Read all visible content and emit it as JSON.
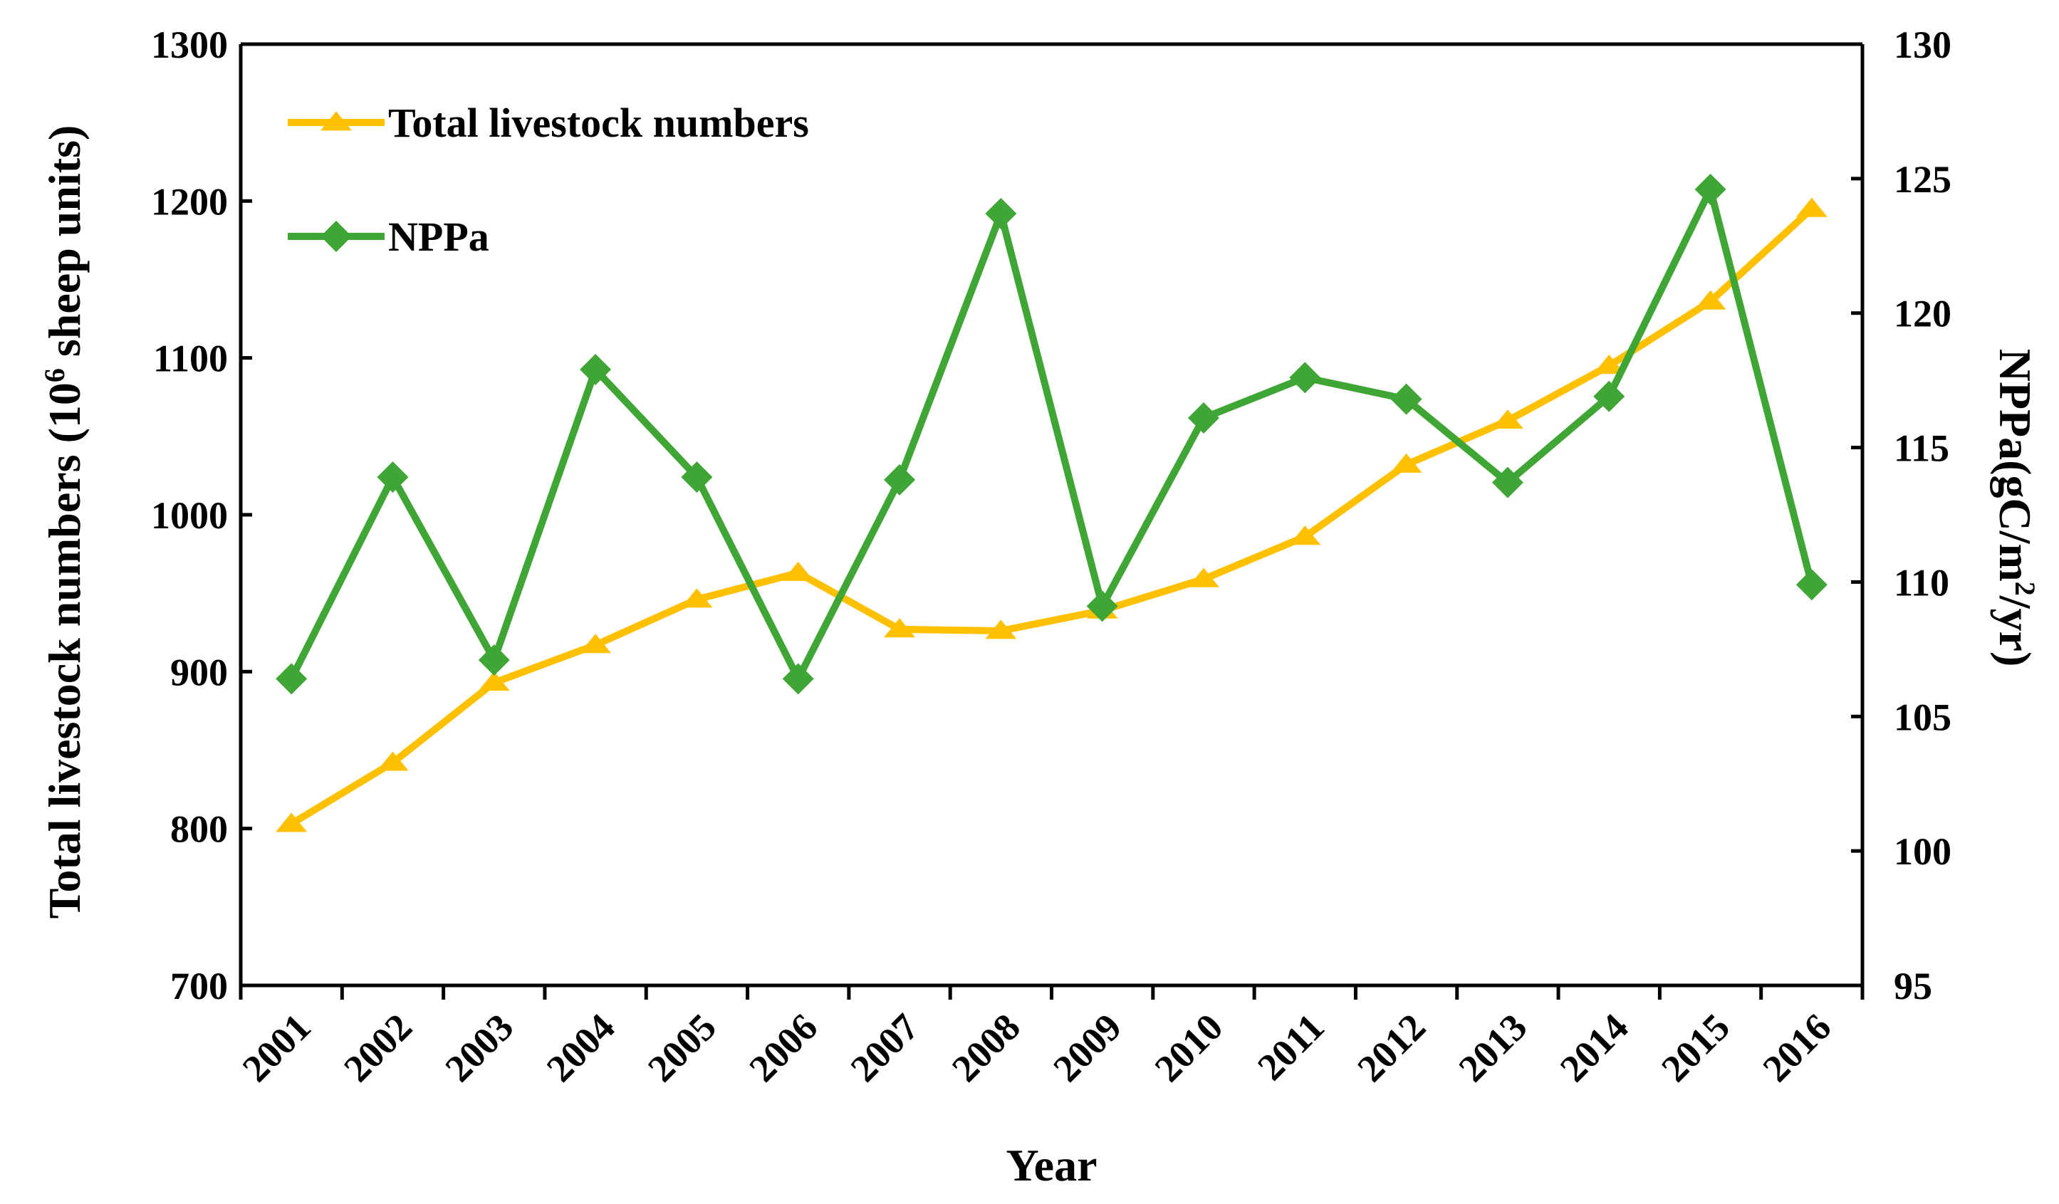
{
  "chart_data": {
    "type": "line",
    "title": "",
    "xlabel": "Year",
    "ylabel_left": {
      "pre": "Total livestock numbers (10",
      "sup": "6",
      "post": " sheep units)"
    },
    "ylabel_right": {
      "pre": "NPPa(gC/m",
      "sup": "2",
      "post": "/yr)"
    },
    "categories": [
      "2001",
      "2002",
      "2003",
      "2004",
      "2005",
      "2006",
      "2007",
      "2008",
      "2009",
      "2010",
      "2011",
      "2012",
      "2013",
      "2014",
      "2015",
      "2016"
    ],
    "ylim_left": [
      700,
      1300
    ],
    "yticks_left": [
      700,
      800,
      900,
      1000,
      1100,
      1200,
      1300
    ],
    "ylim_right": [
      95,
      130
    ],
    "yticks_right": [
      95,
      100,
      105,
      110,
      115,
      120,
      125,
      130
    ],
    "legend_position": "top-left",
    "series": [
      {
        "name": "Total livestock numbers",
        "axis": "left",
        "marker": "triangle",
        "color": "#FFC000",
        "values": [
          803,
          842,
          893,
          917,
          946,
          963,
          927,
          926,
          939,
          959,
          986,
          1032,
          1060,
          1095,
          1136,
          1195
        ]
      },
      {
        "name": "NPPa",
        "axis": "right",
        "marker": "diamond",
        "color": "#3FA535",
        "values": [
          106.4,
          113.9,
          107.1,
          117.9,
          113.9,
          106.4,
          113.8,
          123.7,
          109.1,
          116.1,
          117.6,
          116.8,
          113.7,
          116.9,
          124.6,
          109.9
        ]
      }
    ]
  }
}
